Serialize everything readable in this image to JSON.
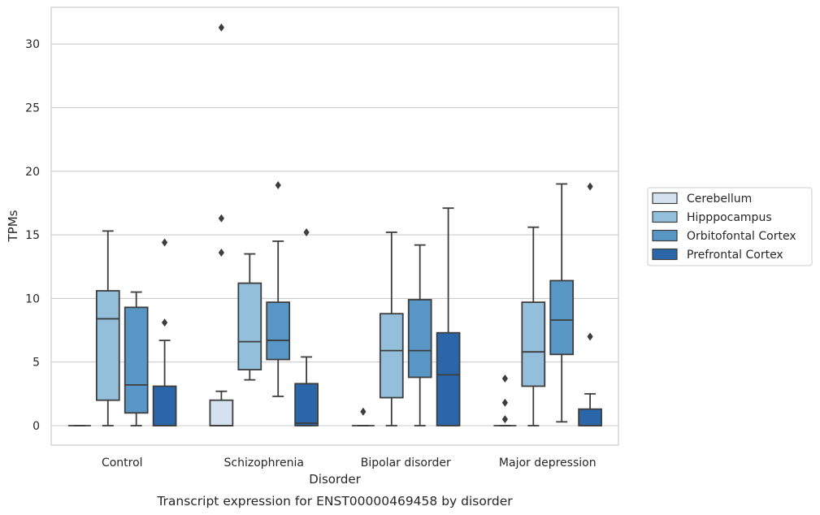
{
  "chart_data": {
    "type": "box",
    "title": "",
    "caption": "Transcript expression for ENST00000469458 by disorder",
    "xlabel": "Disorder",
    "ylabel": "TPMs",
    "ylim": [
      -1.5,
      33
    ],
    "yticks": [
      0,
      5,
      10,
      15,
      20,
      25,
      30
    ],
    "grid": "horizontal",
    "legend_position": "right",
    "categories": [
      "Control",
      "Schizophrenia",
      "Bipolar disorder",
      "Major depression"
    ],
    "series": [
      {
        "name": "Cerebellum",
        "color": "#d4e2f0",
        "boxes": [
          {
            "whislo": 0,
            "q1": 0,
            "med": 0,
            "q3": 0,
            "whishi": 0,
            "fliers": []
          },
          {
            "whislo": 0,
            "q1": 0,
            "med": 0,
            "q3": 2.0,
            "whishi": 2.7,
            "fliers": [
              13.6,
              16.3,
              31.3
            ]
          },
          {
            "whislo": 0,
            "q1": 0,
            "med": 0,
            "q3": 0,
            "whishi": 0,
            "fliers": [
              1.1
            ]
          },
          {
            "whislo": 0,
            "q1": 0,
            "med": 0,
            "q3": 0,
            "whishi": 0,
            "fliers": [
              0.5,
              1.8,
              3.7
            ]
          }
        ]
      },
      {
        "name": "Hipppocampus",
        "color": "#94bfdb",
        "boxes": [
          {
            "whislo": 0,
            "q1": 2.0,
            "med": 8.4,
            "q3": 10.6,
            "whishi": 15.3,
            "fliers": []
          },
          {
            "whislo": 3.6,
            "q1": 4.4,
            "med": 6.6,
            "q3": 11.2,
            "whishi": 13.5,
            "fliers": []
          },
          {
            "whislo": 0,
            "q1": 2.2,
            "med": 5.9,
            "q3": 8.8,
            "whishi": 15.2,
            "fliers": []
          },
          {
            "whislo": 0,
            "q1": 3.1,
            "med": 5.8,
            "q3": 9.7,
            "whishi": 15.6,
            "fliers": []
          }
        ]
      },
      {
        "name": "Orbitofontal Cortex",
        "color": "#5896c6",
        "boxes": [
          {
            "whislo": 0,
            "q1": 1.0,
            "med": 3.2,
            "q3": 9.3,
            "whishi": 10.5,
            "fliers": []
          },
          {
            "whislo": 2.3,
            "q1": 5.2,
            "med": 6.7,
            "q3": 9.7,
            "whishi": 14.5,
            "fliers": [
              18.9
            ]
          },
          {
            "whislo": 0,
            "q1": 3.8,
            "med": 5.9,
            "q3": 9.9,
            "whishi": 14.2,
            "fliers": []
          },
          {
            "whislo": 0.3,
            "q1": 5.6,
            "med": 8.3,
            "q3": 11.4,
            "whishi": 19.0,
            "fliers": []
          }
        ]
      },
      {
        "name": "Prefrontal Cortex",
        "color": "#2b66a8",
        "boxes": [
          {
            "whislo": 0,
            "q1": 0,
            "med": 0,
            "q3": 3.1,
            "whishi": 6.7,
            "fliers": [
              8.1,
              14.4
            ]
          },
          {
            "whislo": 0,
            "q1": 0,
            "med": 0.2,
            "q3": 3.3,
            "whishi": 5.4,
            "fliers": [
              15.2
            ]
          },
          {
            "whislo": 0,
            "q1": 0,
            "med": 4.0,
            "q3": 7.3,
            "whishi": 17.1,
            "fliers": []
          },
          {
            "whislo": 0,
            "q1": 0,
            "med": 0,
            "q3": 1.3,
            "whishi": 2.5,
            "fliers": [
              7.0,
              18.8
            ]
          }
        ]
      }
    ]
  }
}
